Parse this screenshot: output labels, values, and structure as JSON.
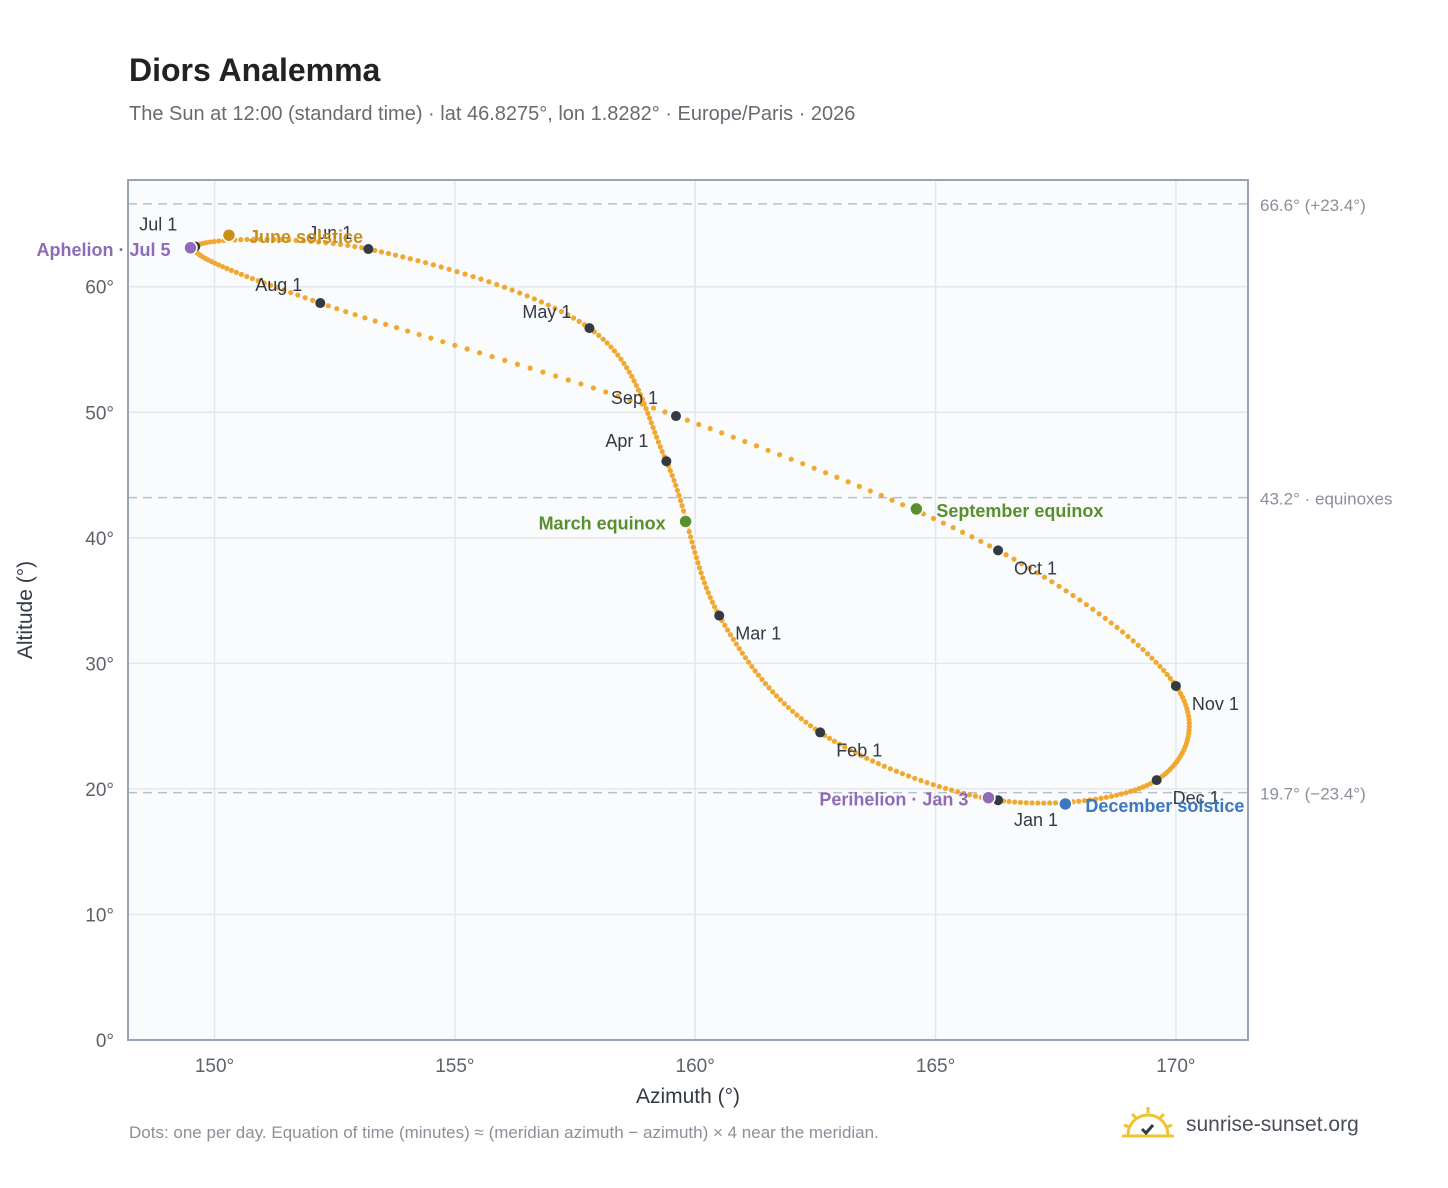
{
  "header": {
    "title": "Diors Analemma",
    "subtitle": "The Sun at 12:00 (standard time) · lat 46.8275°, lon 1.8282° · Europe/Paris · 2026"
  },
  "footer": {
    "note": "Dots: one per day. Equation of time (minutes) ≈ (meridian azimuth − azimuth) × 4 near the meridian.",
    "brand": "sunrise-sunset.org"
  },
  "colors": {
    "path": "#f0a830",
    "month_marker": "#333a44",
    "equinox": "#5a8f2e",
    "june_solstice": "#c8901a",
    "december_solstice": "#3b78c0",
    "apsis": "#8e6ab8",
    "reference_line": "#b8c0c9",
    "plot_background": "#f9fbfd",
    "brand_sun": "#f2c12e"
  },
  "chart_data": {
    "type": "scatter",
    "title": "Diors Analemma",
    "xlabel": "Azimuth (°)",
    "ylabel": "Altitude (°)",
    "xlim": [
      148.2,
      171.5
    ],
    "ylim": [
      0,
      68.5
    ],
    "grid": true,
    "x_ticks": [
      150,
      155,
      160,
      165,
      170
    ],
    "y_ticks": [
      0,
      10,
      20,
      30,
      40,
      50,
      60
    ],
    "x_tick_labels": [
      "150°",
      "155°",
      "160°",
      "165°",
      "170°"
    ],
    "y_tick_labels": [
      "0°",
      "10°",
      "20°",
      "30°",
      "40°",
      "50°",
      "60°"
    ],
    "month_markers": [
      {
        "label": "Jan 1",
        "az": 166.3,
        "alt": 19.1
      },
      {
        "label": "Feb 1",
        "az": 162.6,
        "alt": 24.5
      },
      {
        "label": "Mar 1",
        "az": 160.5,
        "alt": 33.8
      },
      {
        "label": "Apr 1",
        "az": 159.4,
        "alt": 46.1
      },
      {
        "label": "May 1",
        "az": 157.8,
        "alt": 56.7
      },
      {
        "label": "Jun 1",
        "az": 153.2,
        "alt": 63.0
      },
      {
        "label": "Jul 1",
        "az": 149.6,
        "alt": 63.2
      },
      {
        "label": "Aug 1",
        "az": 152.2,
        "alt": 58.7
      },
      {
        "label": "Sep 1",
        "az": 159.6,
        "alt": 49.7
      },
      {
        "label": "Oct 1",
        "az": 166.3,
        "alt": 39.0
      },
      {
        "label": "Nov 1",
        "az": 170.0,
        "alt": 28.2
      },
      {
        "label": "Dec 1",
        "az": 169.6,
        "alt": 20.7
      }
    ],
    "events": [
      {
        "label": "March equinox",
        "az": 159.8,
        "alt": 41.3,
        "kind": "equinox"
      },
      {
        "label": "June solstice",
        "az": 150.3,
        "alt": 64.1,
        "kind": "june_solstice"
      },
      {
        "label": "September equinox",
        "az": 164.6,
        "alt": 42.3,
        "kind": "equinox"
      },
      {
        "label": "December solstice",
        "az": 167.7,
        "alt": 18.8,
        "kind": "december_solstice"
      },
      {
        "label": "Aphelion · Jul 5",
        "az": 149.5,
        "alt": 63.1,
        "kind": "apsis"
      },
      {
        "label": "Perihelion · Jan 3",
        "az": 166.1,
        "alt": 19.3,
        "kind": "apsis"
      }
    ],
    "reference_lines": [
      {
        "alt": 66.6,
        "label": "66.6° (+23.4°)"
      },
      {
        "alt": 43.2,
        "label": "43.2° · equinoxes"
      },
      {
        "alt": 19.7,
        "label": "19.7° (−23.4°)"
      }
    ]
  }
}
